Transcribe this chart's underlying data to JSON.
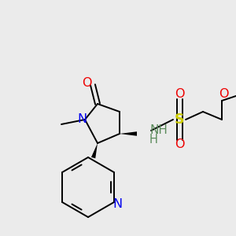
{
  "background_color": "#ebebeb",
  "figsize": [
    3.0,
    3.0
  ],
  "dpi": 100,
  "colors": {
    "bond": "#000000",
    "N": "#0000ee",
    "O": "#ee0000",
    "S": "#cccc00",
    "NH": "#5a8a5a",
    "C": "#000000"
  }
}
